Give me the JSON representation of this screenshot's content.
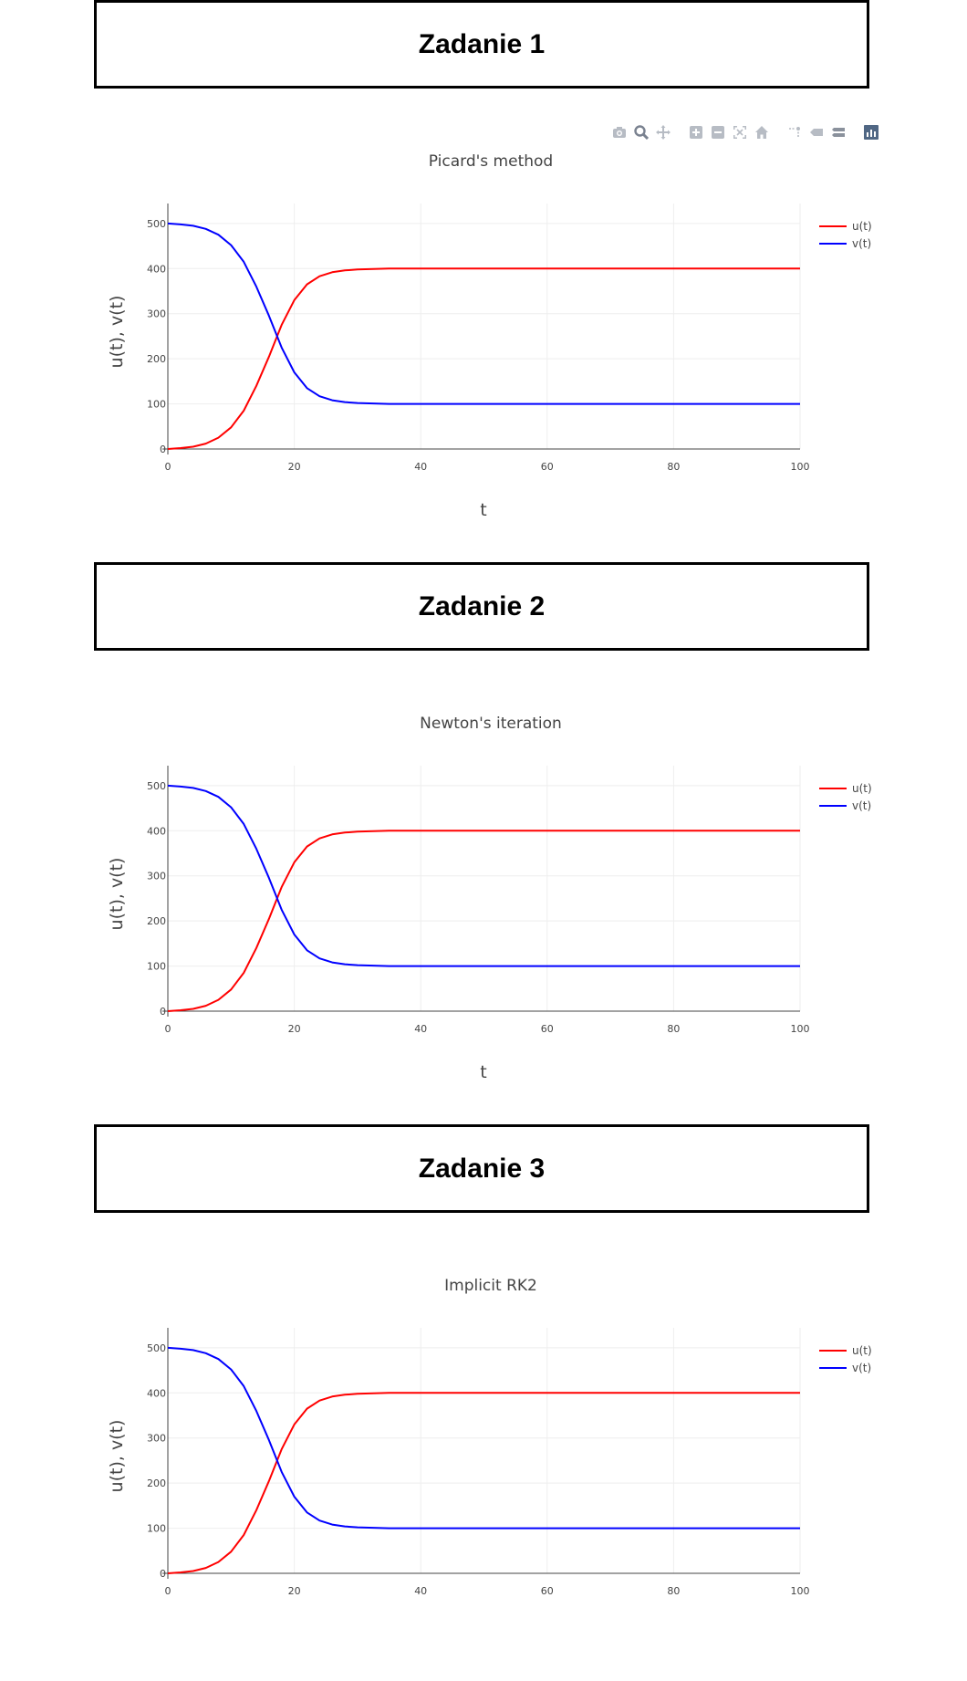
{
  "sections": [
    {
      "title": "Zadanie 1"
    },
    {
      "title": "Zadanie 2"
    },
    {
      "title": "Zadanie 3"
    }
  ],
  "modebar": {
    "icons": [
      "camera-icon",
      "zoom-icon",
      "pan-icon",
      "zoom-in-icon",
      "zoom-out-icon",
      "autoscale-icon",
      "home-icon",
      "spike-lines-icon",
      "hover-closest-icon",
      "hover-compare-icon",
      "plotly-logo-icon"
    ],
    "color": "#b7bcc4"
  },
  "chart_data": [
    {
      "type": "line",
      "title": "Picard's method",
      "xlabel": "t",
      "ylabel": "u(t), v(t)",
      "xlim": [
        0,
        100
      ],
      "ylim": [
        0,
        520
      ],
      "xticks": [
        0,
        20,
        40,
        60,
        80,
        100
      ],
      "yticks": [
        0,
        100,
        200,
        300,
        400,
        500
      ],
      "grid": true,
      "legend_position": "top-right",
      "x": [
        0,
        2,
        4,
        6,
        8,
        10,
        12,
        14,
        16,
        17,
        18,
        20,
        22,
        24,
        26,
        28,
        30,
        35,
        40,
        50,
        60,
        70,
        80,
        90,
        100
      ],
      "series": [
        {
          "name": "u(t)",
          "color": "#ff0000",
          "values": [
            0,
            2,
            5,
            12,
            25,
            48,
            85,
            140,
            205,
            240,
            275,
            330,
            365,
            383,
            392,
            396,
            398,
            400,
            400,
            400,
            400,
            400,
            400,
            400,
            400
          ]
        },
        {
          "name": "v(t)",
          "color": "#0000ff",
          "values": [
            500,
            498,
            495,
            488,
            475,
            452,
            415,
            360,
            295,
            260,
            225,
            170,
            135,
            117,
            108,
            104,
            102,
            100,
            100,
            100,
            100,
            100,
            100,
            100,
            100
          ]
        }
      ]
    },
    {
      "type": "line",
      "title": "Newton's iteration",
      "xlabel": "t",
      "ylabel": "u(t), v(t)",
      "xlim": [
        0,
        100
      ],
      "ylim": [
        0,
        520
      ],
      "xticks": [
        0,
        20,
        40,
        60,
        80,
        100
      ],
      "yticks": [
        0,
        100,
        200,
        300,
        400,
        500
      ],
      "grid": true,
      "legend_position": "top-right",
      "x": [
        0,
        2,
        4,
        6,
        8,
        10,
        12,
        14,
        16,
        17,
        18,
        20,
        22,
        24,
        26,
        28,
        30,
        35,
        40,
        50,
        60,
        70,
        80,
        90,
        100
      ],
      "series": [
        {
          "name": "u(t)",
          "color": "#ff0000",
          "values": [
            0,
            2,
            5,
            12,
            25,
            48,
            85,
            140,
            205,
            240,
            275,
            330,
            365,
            383,
            392,
            396,
            398,
            400,
            400,
            400,
            400,
            400,
            400,
            400,
            400
          ]
        },
        {
          "name": "v(t)",
          "color": "#0000ff",
          "values": [
            500,
            498,
            495,
            488,
            475,
            452,
            415,
            360,
            295,
            260,
            225,
            170,
            135,
            117,
            108,
            104,
            102,
            100,
            100,
            100,
            100,
            100,
            100,
            100,
            100
          ]
        }
      ]
    },
    {
      "type": "line",
      "title": "Implicit RK2",
      "xlabel": "",
      "ylabel": "u(t), v(t)",
      "xlim": [
        0,
        100
      ],
      "ylim": [
        0,
        520
      ],
      "xticks": [
        0,
        20,
        40,
        60,
        80,
        100
      ],
      "yticks": [
        0,
        100,
        200,
        300,
        400,
        500
      ],
      "grid": true,
      "legend_position": "top-right",
      "x": [
        0,
        2,
        4,
        6,
        8,
        10,
        12,
        14,
        16,
        17,
        18,
        20,
        22,
        24,
        26,
        28,
        30,
        35,
        40,
        50,
        60,
        70,
        80,
        90,
        100
      ],
      "series": [
        {
          "name": "u(t)",
          "color": "#ff0000",
          "values": [
            0,
            2,
            5,
            12,
            25,
            48,
            85,
            140,
            205,
            240,
            275,
            330,
            365,
            383,
            392,
            396,
            398,
            400,
            400,
            400,
            400,
            400,
            400,
            400,
            400
          ]
        },
        {
          "name": "v(t)",
          "color": "#0000ff",
          "values": [
            500,
            498,
            495,
            488,
            475,
            452,
            415,
            360,
            295,
            260,
            225,
            170,
            135,
            117,
            108,
            104,
            102,
            100,
            100,
            100,
            100,
            100,
            100,
            100,
            100
          ]
        }
      ]
    }
  ]
}
